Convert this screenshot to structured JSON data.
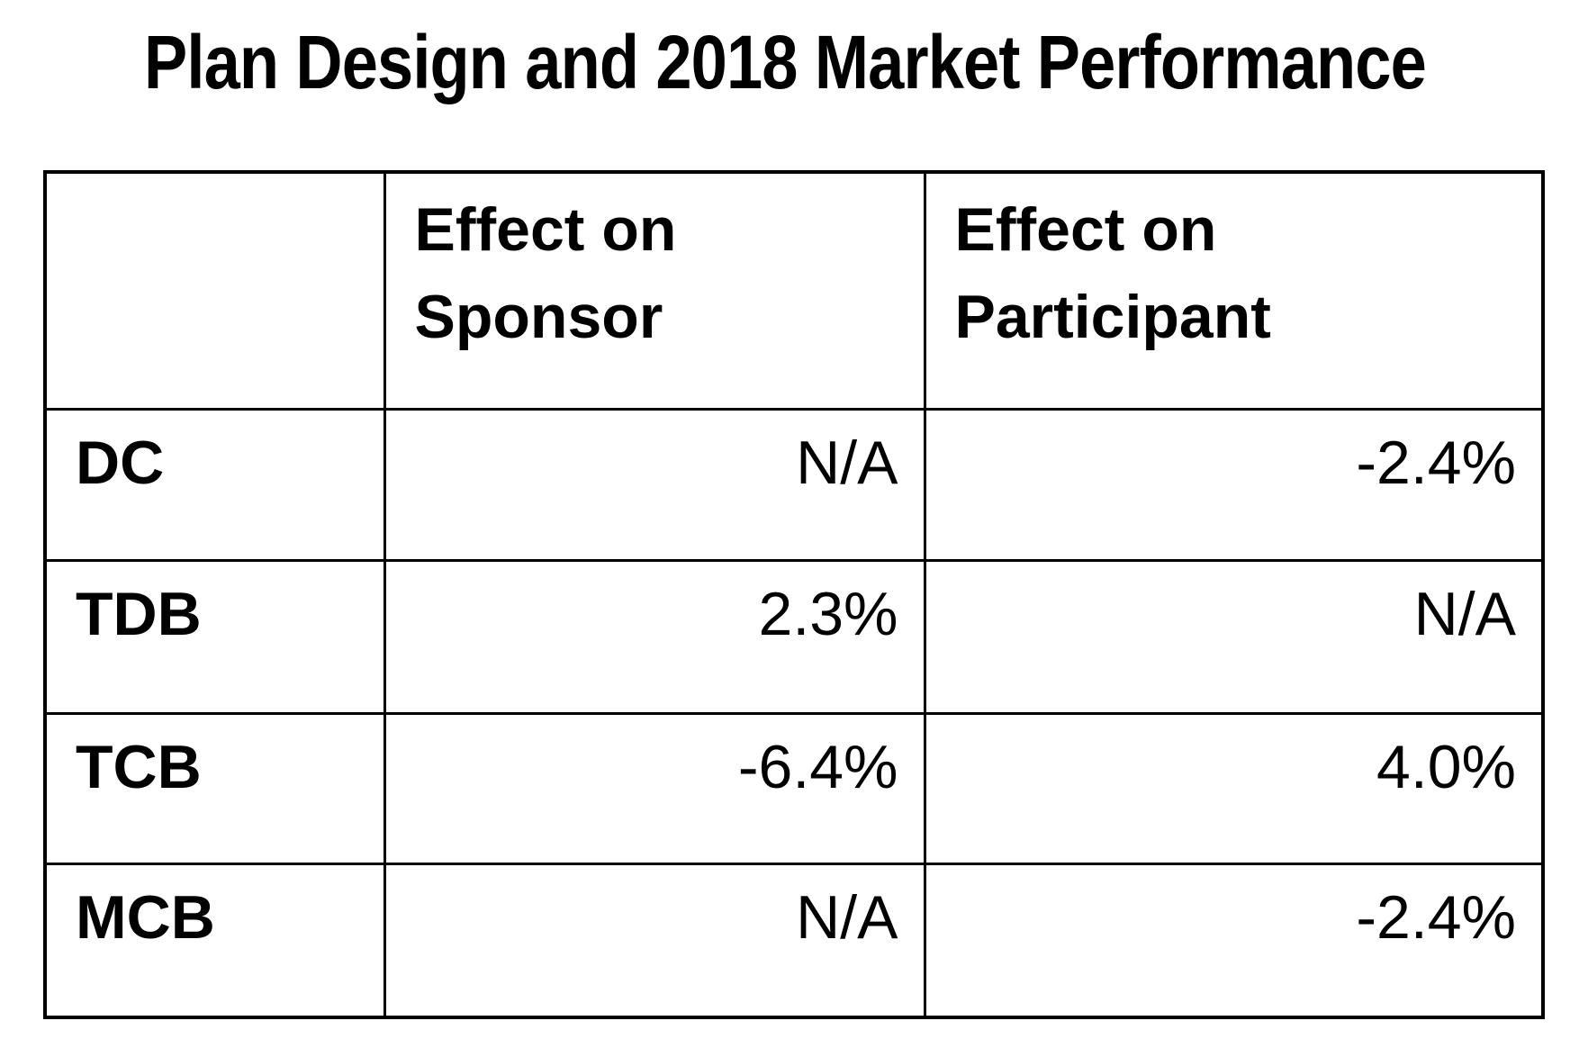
{
  "title": "Plan Design and 2018 Market Performance",
  "colors": {
    "background": "#ffffff",
    "text": "#000000",
    "border": "#000000"
  },
  "chart_data": {
    "type": "table",
    "title": "Plan Design and 2018 Market Performance",
    "columns": [
      "",
      "Effect on Sponsor",
      "Effect on Participant"
    ],
    "rows": [
      {
        "label": "DC",
        "effect_on_sponsor": "N/A",
        "effect_on_participant": "-2.4%"
      },
      {
        "label": "TDB",
        "effect_on_sponsor": "2.3%",
        "effect_on_participant": "N/A"
      },
      {
        "label": "TCB",
        "effect_on_sponsor": "-6.4%",
        "effect_on_participant": "4.0%"
      },
      {
        "label": "MCB",
        "effect_on_sponsor": "N/A",
        "effect_on_participant": "-2.4%"
      }
    ]
  }
}
